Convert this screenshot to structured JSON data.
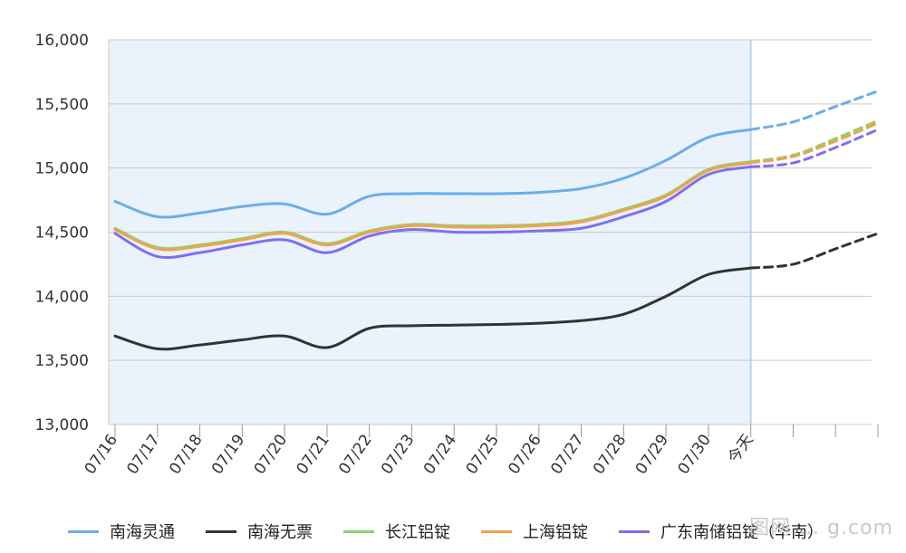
{
  "chart_data": {
    "type": "line",
    "categories": [
      "07/16",
      "07/17",
      "07/18",
      "07/19",
      "07/20",
      "07/21",
      "07/22",
      "07/23",
      "07/24",
      "07/25",
      "07/26",
      "07/27",
      "07/28",
      "07/29",
      "07/30",
      "今天"
    ],
    "forecast_points": 3,
    "ylim": [
      13000,
      16000
    ],
    "yticks": [
      13000,
      13500,
      14000,
      14500,
      15000,
      15500,
      16000
    ],
    "ytick_labels": [
      "13,000",
      "13,500",
      "14,000",
      "14,500",
      "15,000",
      "15,500",
      "16,000"
    ],
    "grid": "horizontal",
    "legend_position": "bottom",
    "history_shaded": true,
    "series": [
      {
        "name": "南海灵通",
        "color": "#6aaee8",
        "values": [
          14740,
          14620,
          14650,
          14700,
          14720,
          14640,
          14780,
          14800,
          14800,
          14800,
          14810,
          14840,
          14920,
          15060,
          15240,
          15300
        ],
        "forecast": [
          15360,
          15480,
          15600
        ]
      },
      {
        "name": "南海无票",
        "color": "#333333",
        "values": [
          13690,
          13590,
          13620,
          13660,
          13690,
          13600,
          13750,
          13770,
          13775,
          13780,
          13790,
          13810,
          13860,
          14000,
          14170,
          14220
        ],
        "forecast": [
          14250,
          14370,
          14490
        ]
      },
      {
        "name": "长江铝锭",
        "color": "#8fd36f",
        "values": [
          14530,
          14380,
          14400,
          14450,
          14500,
          14410,
          14510,
          14560,
          14550,
          14550,
          14560,
          14590,
          14680,
          14790,
          14990,
          15050
        ],
        "forecast": [
          15100,
          15230,
          15370
        ]
      },
      {
        "name": "上海铝锭",
        "color": "#f0a24e",
        "values": [
          14520,
          14370,
          14390,
          14440,
          14490,
          14400,
          14500,
          14550,
          14540,
          14540,
          14550,
          14580,
          14670,
          14780,
          14980,
          15040
        ],
        "forecast": [
          15090,
          15210,
          15350
        ]
      },
      {
        "name": "广东南储铝锭（华南）",
        "color": "#7d6ff0",
        "values": [
          14490,
          14310,
          14340,
          14400,
          14440,
          14340,
          14470,
          14520,
          14500,
          14500,
          14510,
          14530,
          14620,
          14740,
          14950,
          15010
        ],
        "forecast": [
          15040,
          15160,
          15300
        ]
      }
    ]
  },
  "legend_labels": [
    "南海灵通",
    "南海无票",
    "长江铝锭",
    "上海铝锭",
    "广东南储铝锭（华南）"
  ],
  "legend_colors": [
    "#6aaee8",
    "#333333",
    "#8fd36f",
    "#f0a24e",
    "#7d6ff0"
  ],
  "watermark": "图网 ... g.com"
}
